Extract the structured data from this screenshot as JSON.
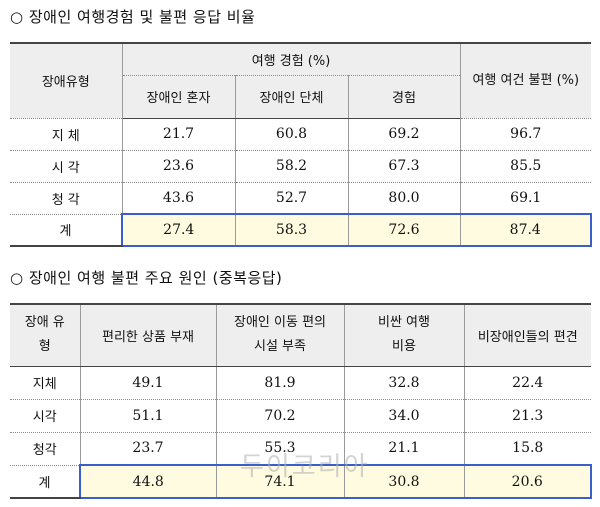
{
  "section1": {
    "heading": "○ 장애인 여행경험 및 불편 응답 비율",
    "col_type": "장애유형",
    "group_label": "여행 경험 (%)",
    "sub_cols": [
      "장애인 혼자",
      "장애인 단체",
      "경험"
    ],
    "inconv_label": "여행 여건 불편 (%)",
    "rows": [
      {
        "label": "지 체",
        "values": [
          "21.7",
          "60.8",
          "69.2",
          "96.7"
        ]
      },
      {
        "label": "시 각",
        "values": [
          "23.6",
          "58.2",
          "67.3",
          "85.5"
        ]
      },
      {
        "label": "청 각",
        "values": [
          "43.6",
          "52.7",
          "80.0",
          "69.1"
        ]
      },
      {
        "label": "계",
        "values": [
          "27.4",
          "58.3",
          "72.6",
          "87.4"
        ]
      }
    ]
  },
  "section2": {
    "heading": "○ 장애인 여행 불편 주요 원인 (중복응답)",
    "col_type": "장애 유형",
    "cols": [
      "편리한 상품 부재",
      "장애인 이동 편의시설 부족",
      "비싼 여행비용",
      "비장애인들의 편견"
    ],
    "rows": [
      {
        "label": "지체",
        "values": [
          "49.1",
          "81.9",
          "32.8",
          "22.4"
        ]
      },
      {
        "label": "시각",
        "values": [
          "51.1",
          "70.2",
          "34.0",
          "21.3"
        ]
      },
      {
        "label": "청각",
        "values": [
          "23.7",
          "55.3",
          "21.1",
          "15.8"
        ]
      },
      {
        "label": "계",
        "values": [
          "44.8",
          "74.1",
          "30.8",
          "20.6"
        ]
      }
    ]
  },
  "watermark": "두이코리아",
  "colors": {
    "header_bg": "#eeeeee",
    "highlight_bg": "#fffbe0",
    "highlight_border": "#3a5fcd"
  }
}
